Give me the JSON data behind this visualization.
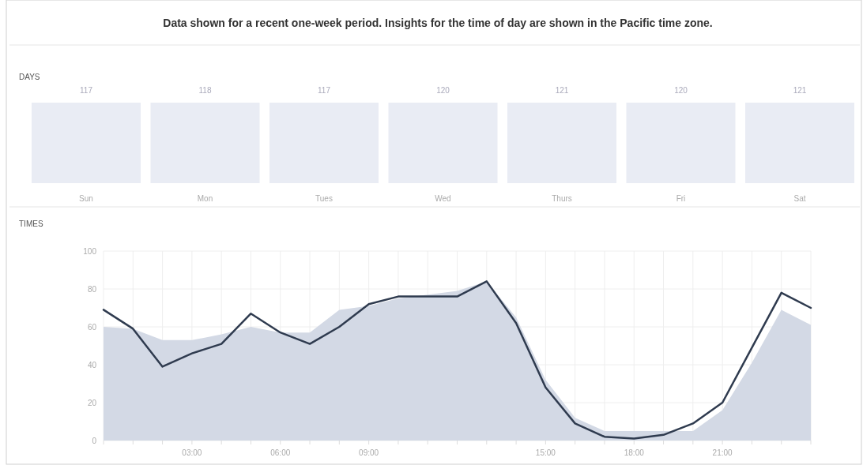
{
  "chart_data": [
    {
      "type": "other",
      "title": "DAYS",
      "annotations": [
        "Data shown for a recent one-week period. Insights for the time of day are shown in the Pacific time zone."
      ],
      "categories": [
        "Sun",
        "Mon",
        "Tues",
        "Wed",
        "Thurs",
        "Fri",
        "Sat"
      ],
      "values": [
        117,
        118,
        117,
        120,
        121,
        120,
        121
      ],
      "data_labels": true,
      "color": "#e9ecf4"
    },
    {
      "type": "area",
      "title": "TIMES",
      "x": [
        0,
        1,
        2,
        3,
        4,
        5,
        6,
        7,
        8,
        9,
        10,
        11,
        12,
        13,
        14,
        15,
        16,
        17,
        18,
        19,
        20,
        21,
        22,
        23,
        24
      ],
      "xlim": [
        0,
        24
      ],
      "xticks": [
        {
          "value": 0,
          "label": null
        },
        {
          "value": 1,
          "label": null
        },
        {
          "value": 2,
          "label": null
        },
        {
          "value": 3,
          "label": "03:00"
        },
        {
          "value": 4,
          "label": null
        },
        {
          "value": 5,
          "label": null
        },
        {
          "value": 6,
          "label": "06:00"
        },
        {
          "value": 7,
          "label": null
        },
        {
          "value": 8,
          "label": null
        },
        {
          "value": 9,
          "label": "09:00"
        },
        {
          "value": 10,
          "label": null
        },
        {
          "value": 11,
          "label": null
        },
        {
          "value": 12,
          "label": null
        },
        {
          "value": 13,
          "label": null
        },
        {
          "value": 14,
          "label": null
        },
        {
          "value": 15,
          "label": "15:00"
        },
        {
          "value": 16,
          "label": null
        },
        {
          "value": 17,
          "label": null
        },
        {
          "value": 18,
          "label": "18:00"
        },
        {
          "value": 19,
          "label": null
        },
        {
          "value": 20,
          "label": null
        },
        {
          "value": 21,
          "label": "21:00"
        },
        {
          "value": 22,
          "label": null
        },
        {
          "value": 23,
          "label": null
        },
        {
          "value": 24,
          "label": null
        }
      ],
      "ylim": [
        0,
        100
      ],
      "yticks": [
        0,
        20,
        40,
        60,
        80,
        100
      ],
      "grid": true,
      "series": [
        {
          "type": "area",
          "color": "#d3d9e5",
          "values": [
            60,
            59,
            53,
            53,
            56,
            60,
            57,
            57,
            69,
            71,
            75,
            77,
            79,
            84,
            65,
            32,
            12,
            5,
            5,
            5,
            5,
            16,
            41,
            69,
            61
          ]
        },
        {
          "type": "line",
          "color": "#2f3b4f",
          "line_style": "solid",
          "marker": "none",
          "values": [
            69,
            59,
            39,
            46,
            51,
            67,
            57,
            51,
            60,
            72,
            76,
            76,
            76,
            84,
            62,
            28,
            9,
            2,
            1,
            3,
            9,
            20,
            49,
            78,
            70
          ]
        }
      ]
    }
  ]
}
